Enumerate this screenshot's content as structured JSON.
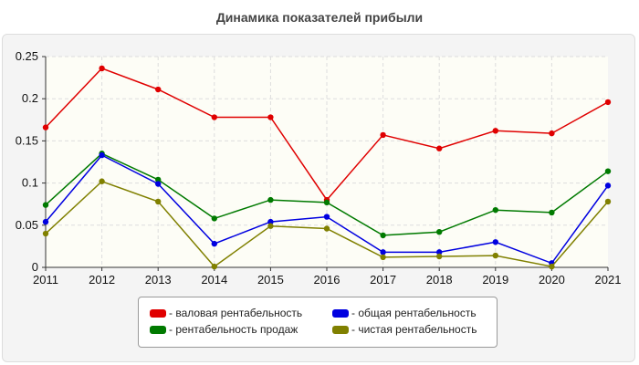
{
  "chart_data": {
    "type": "line",
    "title": "Динамика показателей прибыли",
    "x": [
      "2011",
      "2012",
      "2013",
      "2014",
      "2015",
      "2016",
      "2017",
      "2018",
      "2019",
      "2020",
      "2021"
    ],
    "ylim": [
      0,
      0.25
    ],
    "yticks": [
      "0",
      "0.05",
      "0.1",
      "0.15",
      "0.2",
      "0.25"
    ],
    "grid": true,
    "legend_position": "bottom",
    "series": [
      {
        "name": "валовая рентабельность",
        "color": "#e00000",
        "values": [
          0.166,
          0.236,
          0.211,
          0.178,
          0.178,
          0.08,
          0.157,
          0.141,
          0.162,
          0.159,
          0.196
        ]
      },
      {
        "name": "рентабельность продаж",
        "color": "#007a00",
        "values": [
          0.074,
          0.135,
          0.104,
          0.058,
          0.08,
          0.077,
          0.038,
          0.042,
          0.068,
          0.065,
          0.114
        ]
      },
      {
        "name": "общая рентабельность",
        "color": "#0000e0",
        "values": [
          0.054,
          0.133,
          0.099,
          0.028,
          0.054,
          0.06,
          0.018,
          0.018,
          0.03,
          0.005,
          0.097
        ]
      },
      {
        "name": "чистая рентабельность",
        "color": "#808000",
        "values": [
          0.04,
          0.102,
          0.078,
          0.001,
          0.049,
          0.046,
          0.012,
          0.013,
          0.014,
          0.001,
          0.078
        ]
      }
    ]
  },
  "legend": {
    "prefix": "- ",
    "items": [
      {
        "label": "- валовая рентабельность",
        "color": "#e00000"
      },
      {
        "label": "- общая рентабельность",
        "color": "#0000e0"
      },
      {
        "label": "- рентабельность продаж",
        "color": "#007a00"
      },
      {
        "label": "- чистая рентабельность",
        "color": "#808000"
      }
    ]
  }
}
